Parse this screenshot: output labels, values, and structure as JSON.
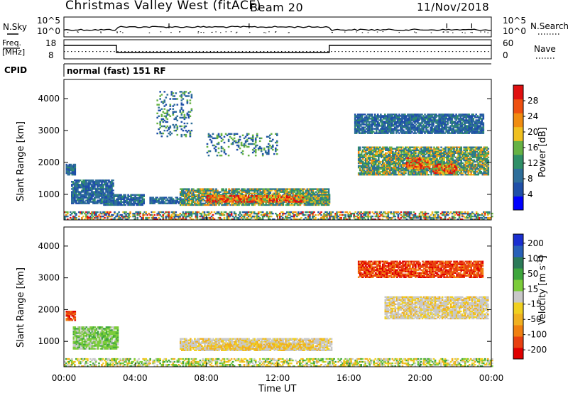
{
  "header": {
    "station": "Christmas Valley West (fitACF)",
    "beam": "Beam 20",
    "date": "11/Nov/2018"
  },
  "left_labels": {
    "nsky": "N.Sky",
    "freq_line1": "Freq.",
    "freq_line2": "[MHz]",
    "cpid": "CPID"
  },
  "right_labels": {
    "nsearch": "N.Search",
    "nave": "Nave"
  },
  "cpid_text": "normal (fast) 151 RF",
  "noise_axis": {
    "top": "10^5",
    "bottom": "10^0"
  },
  "freq_axis": {
    "top": "18",
    "bottom": "8",
    "right_top": "60",
    "right_bottom": "0"
  },
  "colors": {
    "power": [
      "#0000ff",
      "#1f4fa8",
      "#2e6e9a",
      "#2f8f67",
      "#66b244",
      "#f0c020",
      "#f08c10",
      "#ee5010",
      "#e01010"
    ],
    "velocity": [
      "#1a2fd0",
      "#2860b8",
      "#2b7a58",
      "#3ea63c",
      "#7ccc3a",
      "#c8c8c8",
      "#f0d020",
      "#f0b020",
      "#f08010",
      "#e84010",
      "#e00000"
    ]
  },
  "chart_data": [
    {
      "type": "heatmap",
      "panel": "power",
      "ylabel": "Slant Range [km]",
      "yticks": [
        "1000",
        "2000",
        "3000",
        "4000"
      ],
      "ylim": [
        200,
        4600
      ],
      "xlim_hours": [
        0,
        24
      ],
      "colorbar_label": "Power [dB]",
      "colorbar_ticks": [
        "4",
        "8",
        "12",
        "16",
        "20",
        "24",
        "28"
      ],
      "colorbar_range": [
        0,
        32
      ],
      "regions": [
        {
          "t0": 0.1,
          "t1": 0.6,
          "r0": 1600,
          "r1": 1950,
          "level": "low"
        },
        {
          "t0": 0.4,
          "t1": 2.8,
          "r0": 700,
          "r1": 1450,
          "level": "low"
        },
        {
          "t0": 2.2,
          "t1": 4.5,
          "r0": 650,
          "r1": 1000,
          "level": "low"
        },
        {
          "t0": 4.8,
          "t1": 6.5,
          "r0": 700,
          "r1": 900,
          "level": "low"
        },
        {
          "t0": 6.5,
          "t1": 14.9,
          "r0": 650,
          "r1": 1150,
          "level": "mid"
        },
        {
          "t0": 8.0,
          "t1": 13.5,
          "r0": 750,
          "r1": 950,
          "level": "high"
        },
        {
          "t0": 13.5,
          "t1": 14.9,
          "r0": 700,
          "r1": 1000,
          "level": "mid"
        },
        {
          "t0": 16.5,
          "t1": 23.8,
          "r0": 1600,
          "r1": 2500,
          "level": "mid"
        },
        {
          "t0": 19.2,
          "t1": 20.5,
          "r0": 1800,
          "r1": 2150,
          "level": "high"
        },
        {
          "t0": 20.7,
          "t1": 22.0,
          "r0": 1650,
          "r1": 1950,
          "level": "high"
        },
        {
          "t0": 16.3,
          "t1": 23.5,
          "r0": 2900,
          "r1": 3500,
          "level": "low"
        },
        {
          "t0": 5.2,
          "t1": 7.2,
          "r0": 2800,
          "r1": 4200,
          "level": "sparse"
        },
        {
          "t0": 8.0,
          "t1": 12.0,
          "r0": 2200,
          "r1": 2900,
          "level": "sparse"
        },
        {
          "t0": 0.0,
          "t1": 24.0,
          "r0": 200,
          "r1": 450,
          "level": "ground"
        }
      ]
    },
    {
      "type": "heatmap",
      "panel": "velocity",
      "ylabel": "Slant Range [km]",
      "yticks": [
        "1000",
        "2000",
        "3000",
        "4000"
      ],
      "ylim": [
        200,
        4600
      ],
      "xlim_hours": [
        0,
        24
      ],
      "xticks": [
        "00:00",
        "04:00",
        "08:00",
        "12:00",
        "16:00",
        "20:00",
        "00:00"
      ],
      "xlabel": "Time UT",
      "colorbar_label": "Velocity [m s^-1]",
      "colorbar_ticks": [
        "200",
        "100",
        "50",
        "15",
        "-15",
        "-50",
        "-100",
        "-200"
      ],
      "regions": [
        {
          "t0": 0.1,
          "t1": 0.6,
          "r0": 1650,
          "r1": 1950,
          "level": "neg_strong"
        },
        {
          "t0": 0.5,
          "t1": 3.0,
          "r0": 750,
          "r1": 1450,
          "level": "pos_small"
        },
        {
          "t0": 6.5,
          "t1": 15.0,
          "r0": 700,
          "r1": 1100,
          "level": "zero"
        },
        {
          "t0": 8.0,
          "t1": 14.0,
          "r0": 750,
          "r1": 900,
          "level": "neg_small"
        },
        {
          "t0": 18.0,
          "t1": 23.8,
          "r0": 1700,
          "r1": 2400,
          "level": "zero"
        },
        {
          "t0": 16.5,
          "t1": 23.5,
          "r0": 3000,
          "r1": 3500,
          "level": "neg_strong"
        },
        {
          "t0": 0.0,
          "t1": 24.0,
          "r0": 200,
          "r1": 450,
          "level": "ground_v"
        }
      ]
    }
  ]
}
